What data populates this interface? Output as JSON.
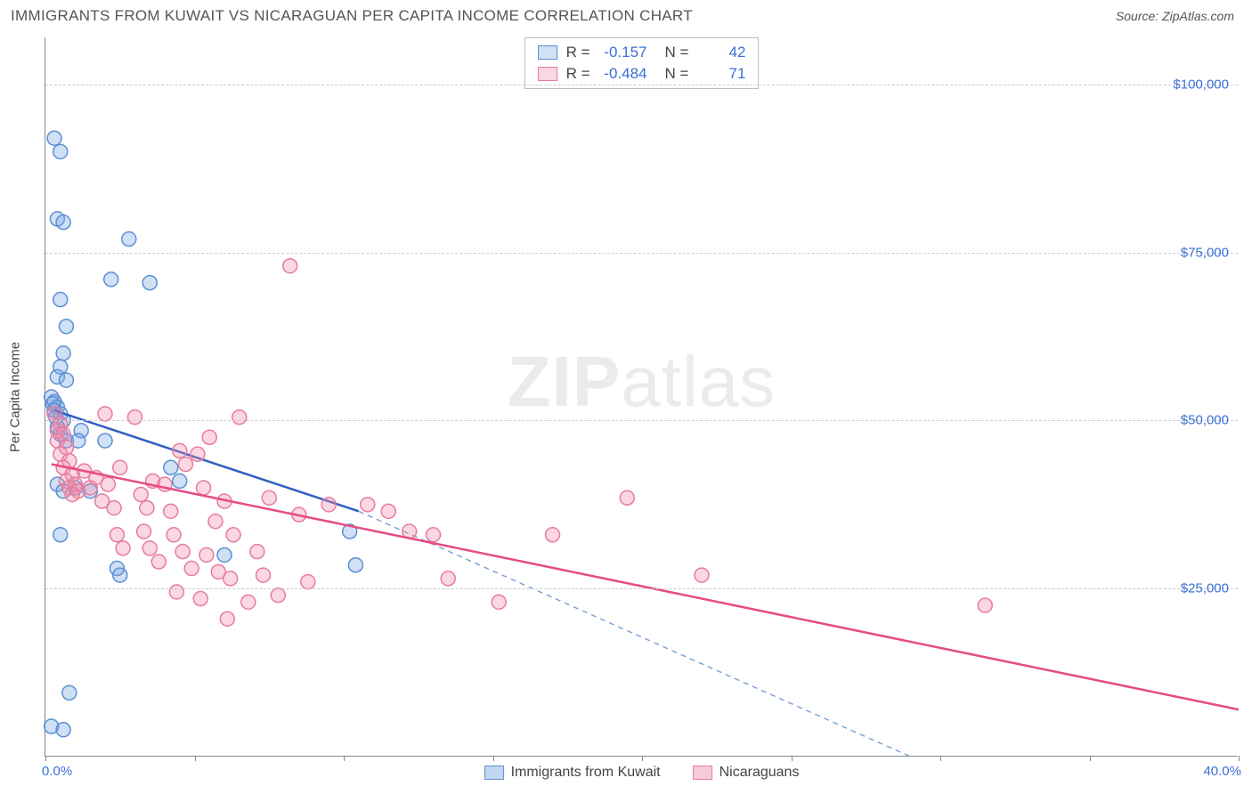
{
  "header": {
    "title": "IMMIGRANTS FROM KUWAIT VS NICARAGUAN PER CAPITA INCOME CORRELATION CHART",
    "source": "Source: ZipAtlas.com"
  },
  "watermark": {
    "bold": "ZIP",
    "rest": "atlas"
  },
  "chart": {
    "type": "scatter",
    "ylabel": "Per Capita Income",
    "x_min": 0.0,
    "x_max": 40.0,
    "y_min": 0,
    "y_max": 107000,
    "y_gridlines": [
      25000,
      50000,
      75000,
      100000
    ],
    "y_tick_labels": [
      "$25,000",
      "$50,000",
      "$75,000",
      "$100,000"
    ],
    "x_ticks_pct": [
      0,
      5,
      10,
      15,
      20,
      25,
      30,
      35,
      40
    ],
    "x_start_label": "0.0%",
    "x_end_label": "40.0%",
    "grid_color": "#cccccc",
    "background": "#ffffff",
    "axis_color": "#888888",
    "tick_label_color": "#3a6fd8",
    "marker_radius": 8,
    "marker_stroke_width": 1.5,
    "trend_line_width": 2.5,
    "series": [
      {
        "name": "Immigrants from Kuwait",
        "fill": "rgba(120,165,225,0.35)",
        "stroke": "#5b8fd6",
        "line_color": "#2f5fc4",
        "dash_color": "#7fa3d9",
        "stats": {
          "R": "-0.157",
          "N": "42"
        },
        "trend_solid": {
          "x1": 0.3,
          "y1": 51500,
          "x2": 10.5,
          "y2": 36500
        },
        "trend_dash": {
          "x1": 10.5,
          "y1": 36500,
          "x2": 29.0,
          "y2": 0
        },
        "points": [
          [
            0.2,
            4500
          ],
          [
            0.6,
            4000
          ],
          [
            0.8,
            9500
          ],
          [
            0.3,
            92000
          ],
          [
            0.5,
            90000
          ],
          [
            0.4,
            80000
          ],
          [
            0.6,
            79500
          ],
          [
            0.5,
            68000
          ],
          [
            0.7,
            64000
          ],
          [
            0.6,
            60000
          ],
          [
            0.5,
            58000
          ],
          [
            0.4,
            56500
          ],
          [
            0.7,
            56000
          ],
          [
            0.2,
            53500
          ],
          [
            0.3,
            52800
          ],
          [
            0.25,
            52500
          ],
          [
            0.4,
            52000
          ],
          [
            0.3,
            51500
          ],
          [
            0.5,
            51000
          ],
          [
            0.35,
            50500
          ],
          [
            0.6,
            50000
          ],
          [
            0.4,
            49000
          ],
          [
            0.5,
            48000
          ],
          [
            0.7,
            47000
          ],
          [
            1.2,
            48500
          ],
          [
            1.0,
            40000
          ],
          [
            1.5,
            39500
          ],
          [
            0.4,
            40500
          ],
          [
            0.6,
            39500
          ],
          [
            0.5,
            33000
          ],
          [
            1.1,
            47000
          ],
          [
            2.2,
            71000
          ],
          [
            2.8,
            77000
          ],
          [
            2.0,
            47000
          ],
          [
            2.4,
            28000
          ],
          [
            2.5,
            27000
          ],
          [
            3.5,
            70500
          ],
          [
            4.2,
            43000
          ],
          [
            4.5,
            41000
          ],
          [
            6.0,
            30000
          ],
          [
            10.2,
            33500
          ],
          [
            10.4,
            28500
          ]
        ]
      },
      {
        "name": "Nicaraguans",
        "fill": "rgba(240,140,170,0.35)",
        "stroke": "#e97aa0",
        "line_color": "#e64c82",
        "dash_color": "#f0a0bc",
        "stats": {
          "R": "-0.484",
          "N": "71"
        },
        "trend_solid": {
          "x1": 0.2,
          "y1": 43500,
          "x2": 40.0,
          "y2": 7000
        },
        "trend_dash": null,
        "points": [
          [
            0.3,
            51000
          ],
          [
            0.5,
            49500
          ],
          [
            0.4,
            48500
          ],
          [
            0.6,
            48000
          ],
          [
            0.4,
            47000
          ],
          [
            0.7,
            46000
          ],
          [
            0.5,
            45000
          ],
          [
            0.8,
            44000
          ],
          [
            0.6,
            43000
          ],
          [
            0.9,
            42000
          ],
          [
            0.7,
            41000
          ],
          [
            1.0,
            40500
          ],
          [
            0.8,
            40000
          ],
          [
            1.1,
            39500
          ],
          [
            0.9,
            39000
          ],
          [
            1.3,
            42500
          ],
          [
            1.5,
            40000
          ],
          [
            1.7,
            41500
          ],
          [
            1.9,
            38000
          ],
          [
            2.1,
            40500
          ],
          [
            2.3,
            37000
          ],
          [
            2.5,
            43000
          ],
          [
            2.0,
            51000
          ],
          [
            2.4,
            33000
          ],
          [
            2.6,
            31000
          ],
          [
            3.0,
            50500
          ],
          [
            3.2,
            39000
          ],
          [
            3.4,
            37000
          ],
          [
            3.6,
            41000
          ],
          [
            3.3,
            33500
          ],
          [
            3.5,
            31000
          ],
          [
            3.8,
            29000
          ],
          [
            4.0,
            40500
          ],
          [
            4.2,
            36500
          ],
          [
            4.5,
            45500
          ],
          [
            4.7,
            43500
          ],
          [
            4.3,
            33000
          ],
          [
            4.6,
            30500
          ],
          [
            4.9,
            28000
          ],
          [
            4.4,
            24500
          ],
          [
            5.1,
            45000
          ],
          [
            5.3,
            40000
          ],
          [
            5.5,
            47500
          ],
          [
            5.7,
            35000
          ],
          [
            5.4,
            30000
          ],
          [
            5.8,
            27500
          ],
          [
            5.2,
            23500
          ],
          [
            6.0,
            38000
          ],
          [
            6.3,
            33000
          ],
          [
            6.5,
            50500
          ],
          [
            6.2,
            26500
          ],
          [
            6.8,
            23000
          ],
          [
            6.1,
            20500
          ],
          [
            7.1,
            30500
          ],
          [
            7.3,
            27000
          ],
          [
            7.5,
            38500
          ],
          [
            7.8,
            24000
          ],
          [
            8.2,
            73000
          ],
          [
            8.5,
            36000
          ],
          [
            8.8,
            26000
          ],
          [
            9.5,
            37500
          ],
          [
            10.8,
            37500
          ],
          [
            11.5,
            36500
          ],
          [
            12.2,
            33500
          ],
          [
            13.0,
            33000
          ],
          [
            13.5,
            26500
          ],
          [
            15.2,
            23000
          ],
          [
            17.0,
            33000
          ],
          [
            19.5,
            38500
          ],
          [
            22.0,
            27000
          ],
          [
            31.5,
            22500
          ]
        ]
      }
    ]
  },
  "legend": {
    "items": [
      {
        "label": "Immigrants from Kuwait",
        "fill": "rgba(120,165,225,0.45)",
        "stroke": "#5b8fd6"
      },
      {
        "label": "Nicaraguans",
        "fill": "rgba(240,140,170,0.45)",
        "stroke": "#e97aa0"
      }
    ]
  }
}
